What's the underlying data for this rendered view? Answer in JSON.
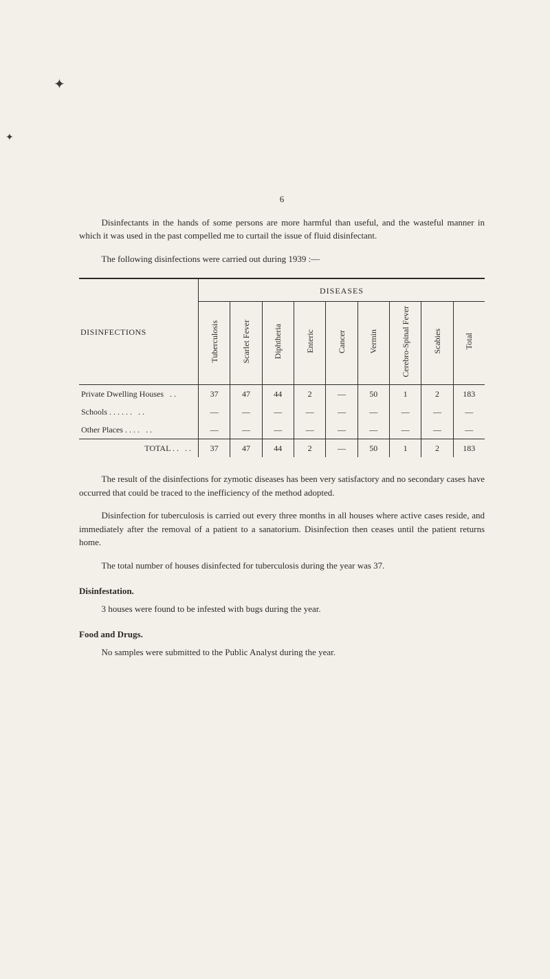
{
  "page_number": "6",
  "paragraphs": {
    "p1": "Disinfectants in the hands of some persons are more harmful than useful, and the wasteful manner in which it was used in the past compelled me to curtail the issue of fluid disinfectant.",
    "p2": "The following disinfections were carried out during 1939 :—",
    "p3": "The result of the disinfections for zymotic diseases has been very satisfactory and no secondary cases have occurred that could be traced to the inefficiency of the method adopted.",
    "p4": "Disinfection for tuberculosis is carried out every three months in all houses where active cases reside, and immediately after the removal of a patient to a sanatorium. Disinfection then ceases until the patient returns home.",
    "p5": "The total number of houses disinfected for tuberculosis during the year was 37.",
    "disinfestation_body": "3 houses were found to be infested with bugs during the year.",
    "food_body": "No samples were submitted to the Public Analyst during the year."
  },
  "headings": {
    "disinfestation": "Disinfestation.",
    "food": "Food and Drugs."
  },
  "table": {
    "diseases_label": "DISEASES",
    "row_header_label": "DISINFECTIONS",
    "columns": [
      "Tuberculosis",
      "Scarlet Fever",
      "Diphtheria",
      "Enteric",
      "Cancer",
      "Vermin",
      "Cerebro-Spinal Fever",
      "Scabies",
      "Total"
    ],
    "rows": [
      {
        "label": "Private Dwelling Houses",
        "dots": ". .",
        "values": [
          "37",
          "47",
          "44",
          "2",
          "—",
          "50",
          "1",
          "2",
          "183"
        ]
      },
      {
        "label": "Schools  . .      . .      . .",
        "dots": ". .",
        "values": [
          "—",
          "—",
          "—",
          "—",
          "—",
          "—",
          "—",
          "—",
          "—"
        ]
      },
      {
        "label": "Other Places    . .      . .",
        "dots": ". .",
        "values": [
          "—",
          "—",
          "—",
          "—",
          "—",
          "—",
          "—",
          "—",
          "—"
        ]
      }
    ],
    "total_row": {
      "label": "TOTAL  . .",
      "dots": ". .",
      "values": [
        "37",
        "47",
        "44",
        "2",
        "—",
        "50",
        "1",
        "2",
        "183"
      ]
    }
  },
  "styling": {
    "background": "#f2f0e8",
    "text_color": "#2a2a26",
    "border_color": "#2a2a26",
    "body_fontsize": 13,
    "table_fontsize": 12
  }
}
